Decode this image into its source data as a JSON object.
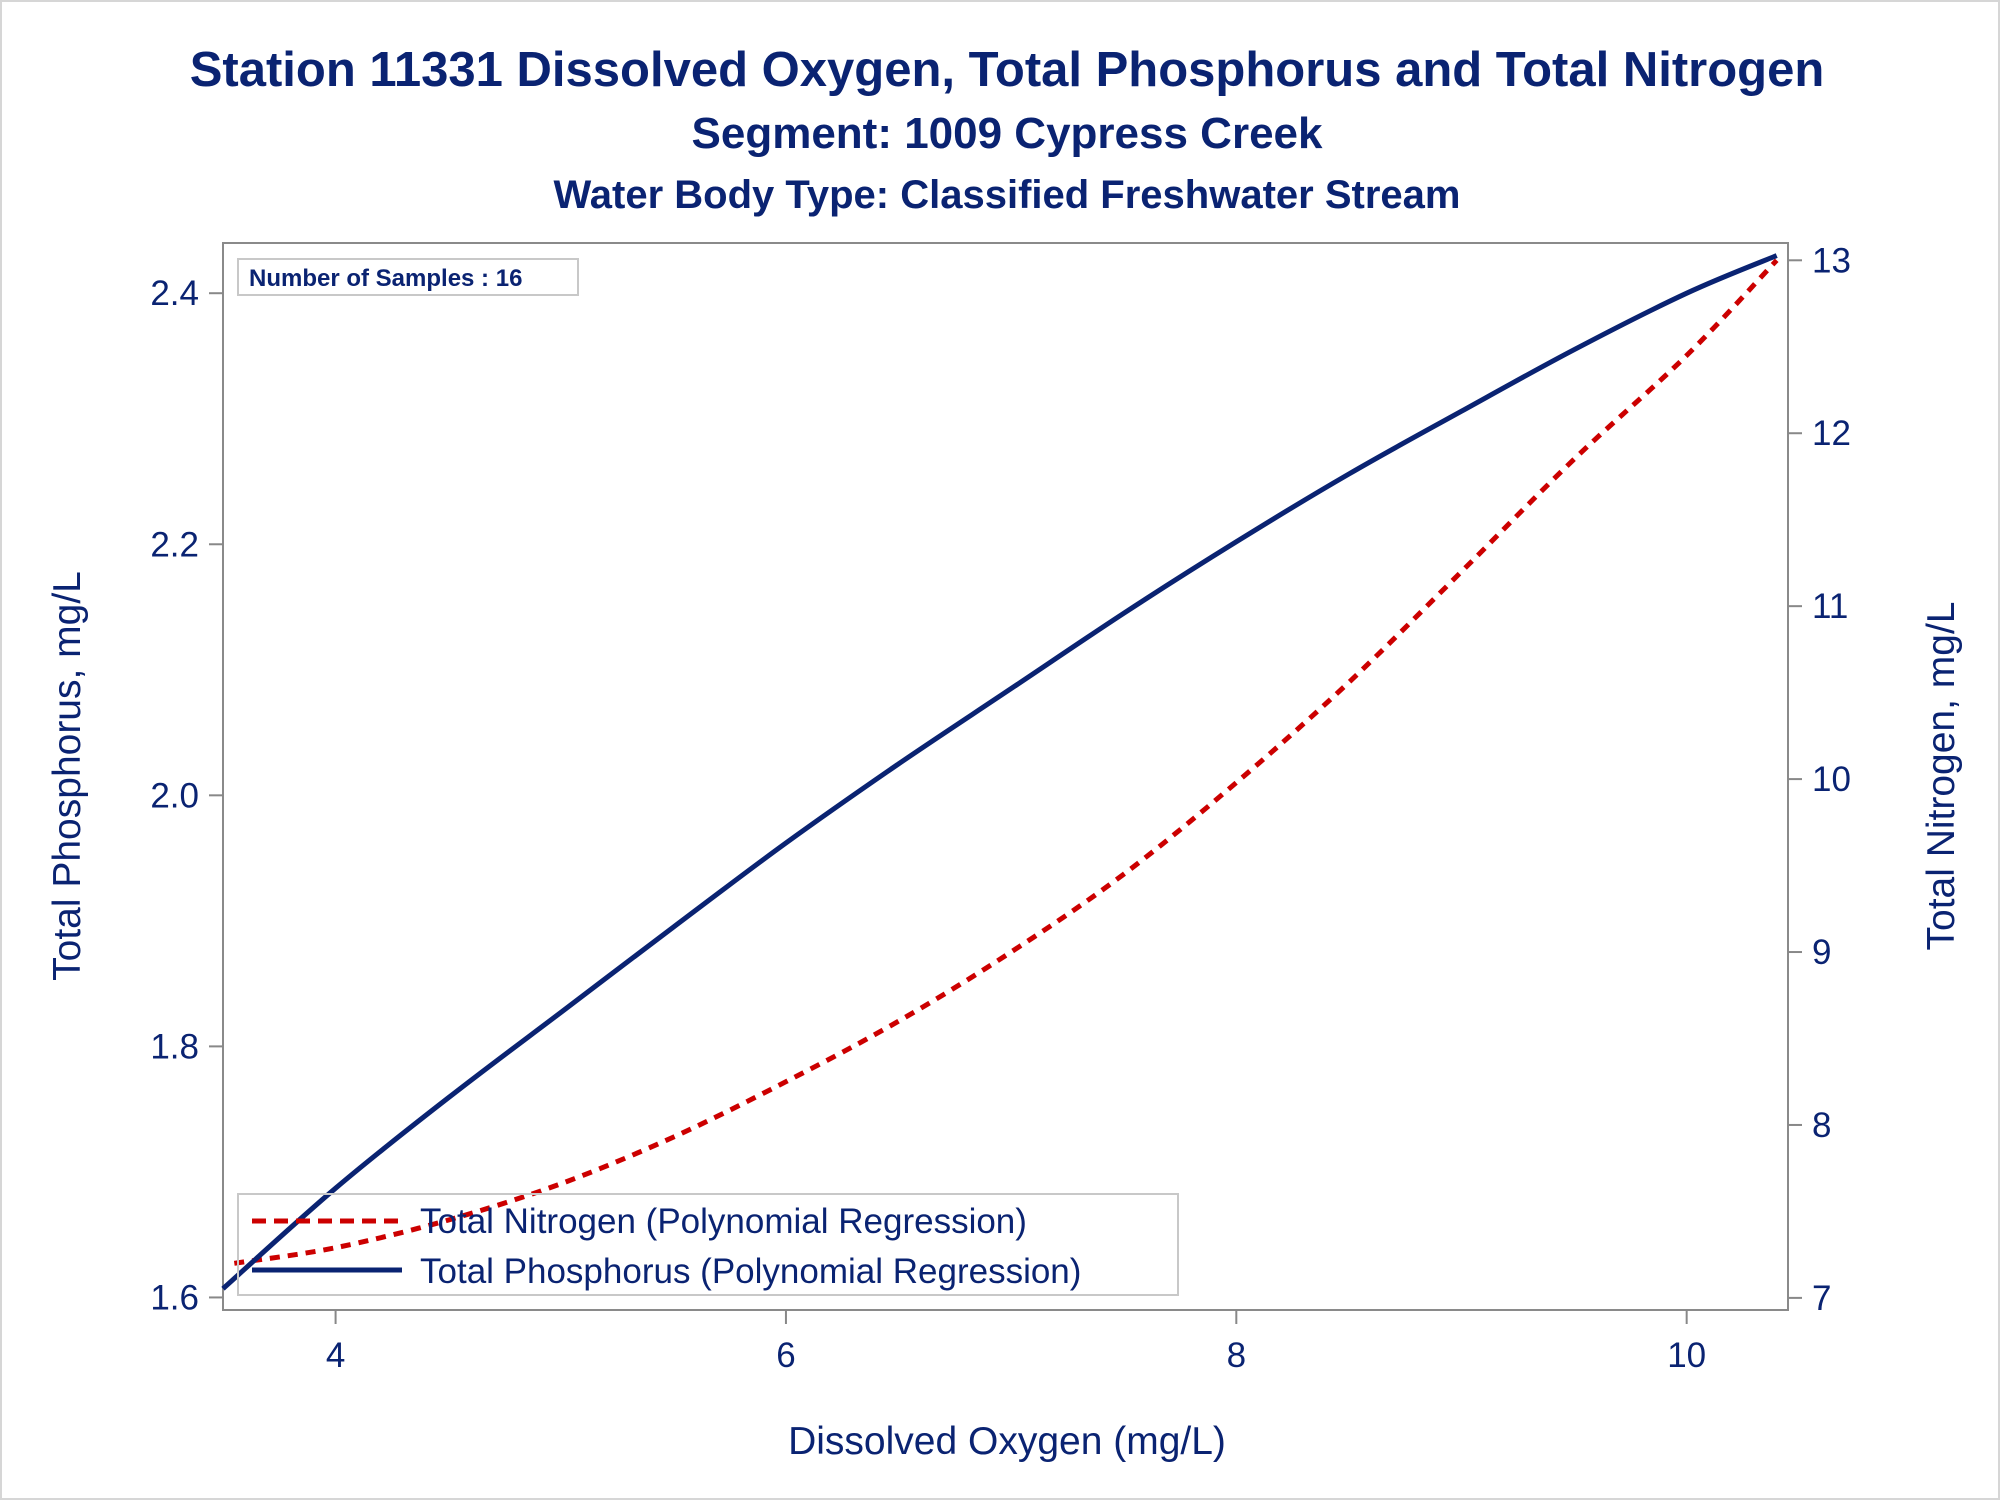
{
  "titles": {
    "line1": "Station 11331  Dissolved Oxygen, Total Phosphorus and Total Nitrogen",
    "line2": "Segment: 1009  Cypress Creek",
    "line3": "Water Body Type: Classified Freshwater Stream"
  },
  "inset": {
    "samples_text": "Number of Samples : 16"
  },
  "colors": {
    "text": "#0a2372",
    "phosphorus_line": "#0a2372",
    "nitrogen_line": "#cc0000",
    "axis": "#888888"
  },
  "chart_data": {
    "type": "line",
    "title": "Station 11331  Dissolved Oxygen, Total Phosphorus and Total Nitrogen",
    "subtitle": [
      "Segment: 1009  Cypress Creek",
      "Water Body Type: Classified Freshwater Stream"
    ],
    "xlabel": "Dissolved Oxygen (mg/L)",
    "ylabel": "Total Phosphorus, mg/L",
    "y2label": "Total Nitrogen, mg/L",
    "xlim": [
      3.5,
      10.45
    ],
    "ylim": [
      1.59,
      2.44
    ],
    "y2lim": [
      6.93,
      13.1
    ],
    "x_ticks": [
      4,
      6,
      8,
      10
    ],
    "y_ticks": [
      1.6,
      1.8,
      2.0,
      2.2,
      2.4
    ],
    "y2_ticks": [
      7,
      8,
      9,
      10,
      11,
      12,
      13
    ],
    "x_tick_labels": [
      "4",
      "6",
      "8",
      "10"
    ],
    "y_tick_labels": [
      "1.6",
      "1.8",
      "2.0",
      "2.2",
      "2.4"
    ],
    "y2_tick_labels": [
      "7",
      "8",
      "9",
      "10",
      "11",
      "12",
      "13"
    ],
    "grid": false,
    "legend_position": "bottom-left inside",
    "series": [
      {
        "name": "Total Nitrogen (Polynomial Regression)",
        "axis": "right",
        "style": "dashed",
        "color": "#cc0000",
        "x": [
          3.55,
          4.0,
          4.5,
          5.0,
          5.5,
          6.0,
          6.5,
          7.0,
          7.5,
          8.0,
          8.5,
          9.0,
          9.5,
          10.0,
          10.4
        ],
        "y": [
          7.2,
          7.29,
          7.45,
          7.66,
          7.93,
          8.25,
          8.6,
          9.0,
          9.45,
          9.98,
          10.56,
          11.2,
          11.85,
          12.45,
          13.0
        ]
      },
      {
        "name": "Total Phosphorus (Polynomial Regression)",
        "axis": "left",
        "style": "solid",
        "color": "#0a2372",
        "x": [
          3.5,
          4.0,
          4.5,
          5.0,
          5.5,
          6.0,
          6.5,
          7.0,
          7.5,
          8.0,
          8.5,
          9.0,
          9.5,
          10.0,
          10.4
        ],
        "y": [
          1.607,
          1.687,
          1.759,
          1.827,
          1.895,
          1.962,
          2.025,
          2.085,
          2.145,
          2.202,
          2.256,
          2.306,
          2.355,
          2.4,
          2.43
        ]
      }
    ]
  }
}
